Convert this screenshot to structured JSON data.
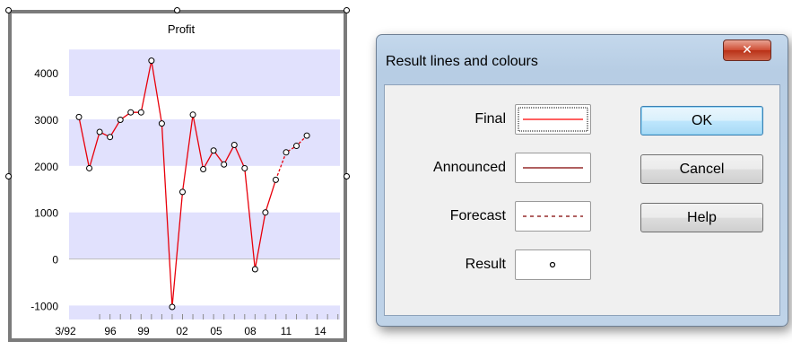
{
  "chart_data": {
    "type": "line",
    "title": "Profit",
    "x_tick_labels": [
      "3/92",
      "96",
      "99",
      "02",
      "05",
      "08",
      "11",
      "14"
    ],
    "y_tick_labels": [
      "4000",
      "3000",
      "2000",
      "1000",
      "0",
      "-1000"
    ],
    "ylim": [
      -1300,
      4600
    ],
    "band_color": "#e1e1fd",
    "series": [
      {
        "line_color": "#e8000b",
        "values": [
          3050,
          1950,
          2730,
          2620,
          2990,
          3150,
          3150,
          4260,
          2910,
          -1030,
          1440,
          3100,
          1930,
          2330,
          2030,
          2450,
          1950,
          -220,
          1000,
          1700
        ],
        "style": "solid"
      },
      {
        "line_color": "#e8000b",
        "values_start_index": 19,
        "values": [
          1700,
          2290,
          2430,
          2650
        ],
        "style": "dashed"
      }
    ]
  },
  "dialog": {
    "title": "Result lines and colours",
    "close_icon": "close-icon",
    "rows": [
      {
        "label": "Final",
        "swatch": "line",
        "color": "#ff0000",
        "style": "solid",
        "focused": true
      },
      {
        "label": "Announced",
        "swatch": "line",
        "color": "#800000",
        "style": "solid"
      },
      {
        "label": "Forecast",
        "swatch": "line",
        "color": "#800000",
        "style": "dashed"
      },
      {
        "label": "Result",
        "swatch": "marker",
        "color": "#000000",
        "style": "circle"
      }
    ],
    "buttons": {
      "ok": "OK",
      "cancel": "Cancel",
      "help": "Help"
    }
  }
}
